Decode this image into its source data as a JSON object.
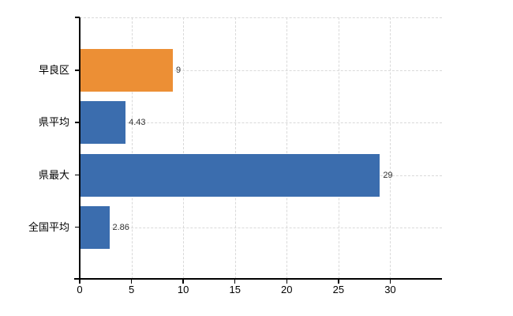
{
  "chart": {
    "colors": {
      "background": "#FFFFFF",
      "axis": "#000000",
      "grid": "#D9D9D9",
      "value_label_text": "#333333",
      "category_label_text": "#000000",
      "tick_label_text": "#000000",
      "orange_bar": "#EC8F35",
      "blue_bar": "#3B6DAE"
    }
  },
  "chart_data": {
    "type": "bar",
    "orientation": "horizontal",
    "title": "",
    "xlabel": "",
    "ylabel": "",
    "categories": [
      "早良区",
      "県平均",
      "県最大",
      "全国平均"
    ],
    "values": [
      9,
      4.43,
      29,
      2.86
    ],
    "value_labels": [
      "9",
      "4.43",
      "29",
      "2.86"
    ],
    "series_colors": [
      "#EC8F35",
      "#3B6DAE",
      "#3B6DAE",
      "#3B6DAE"
    ],
    "xlim": [
      0,
      35
    ],
    "x_ticks": [
      0,
      5,
      10,
      15,
      20,
      25,
      30
    ],
    "grid": true,
    "legend": false
  }
}
